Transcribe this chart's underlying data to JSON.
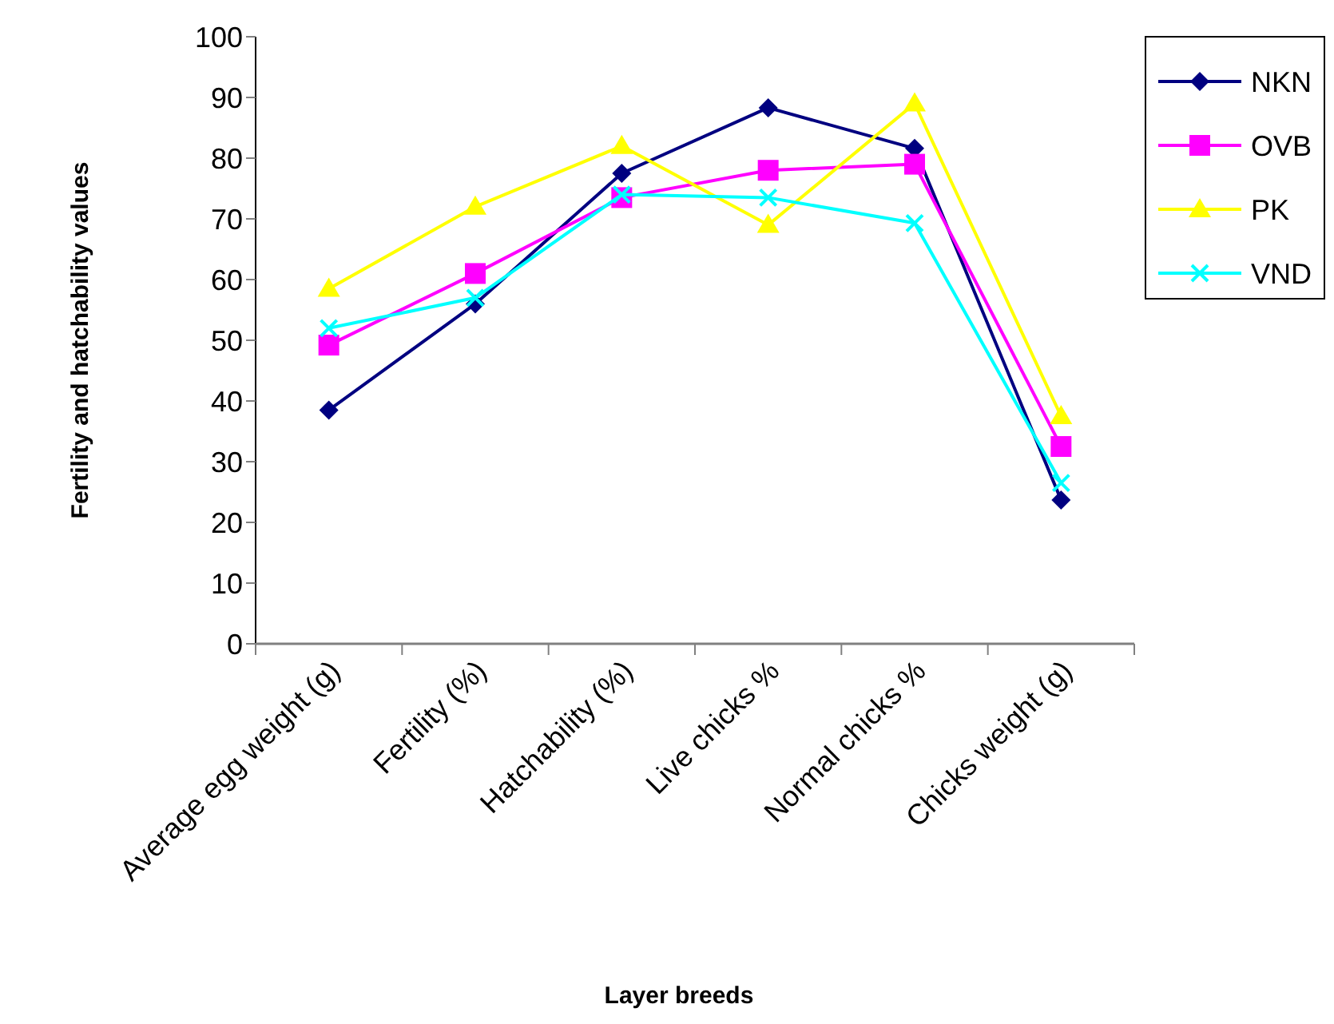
{
  "chart_data": {
    "type": "line",
    "xlabel": "Layer breeds",
    "ylabel": "Fertility and hatchability values",
    "categories": [
      "Average egg weight (g)",
      "Fertility (%)",
      "Hatchability (%)",
      "Live chicks %",
      "Normal chicks %",
      "Chicks weight (g)"
    ],
    "ylim": [
      0,
      100
    ],
    "yticks": [
      0,
      10,
      20,
      30,
      40,
      50,
      60,
      70,
      80,
      90,
      100
    ],
    "grid": false,
    "legend": "right",
    "series": [
      {
        "name": "NKN",
        "color": "#000080",
        "marker": "diamond",
        "values": [
          38.5,
          56,
          77.5,
          88.3,
          81.6,
          23.7
        ]
      },
      {
        "name": "OVB",
        "color": "#ff00ff",
        "marker": "square",
        "values": [
          49.2,
          61,
          73.5,
          78,
          79,
          32.5
        ]
      },
      {
        "name": "PK",
        "color": "#ffff00",
        "marker": "triangle",
        "values": [
          58.5,
          72,
          82,
          69,
          89,
          37.5
        ]
      },
      {
        "name": "VND",
        "color": "#00ffff",
        "marker": "cross",
        "values": [
          52,
          57,
          74,
          73.5,
          69.3,
          26.5
        ]
      }
    ]
  }
}
